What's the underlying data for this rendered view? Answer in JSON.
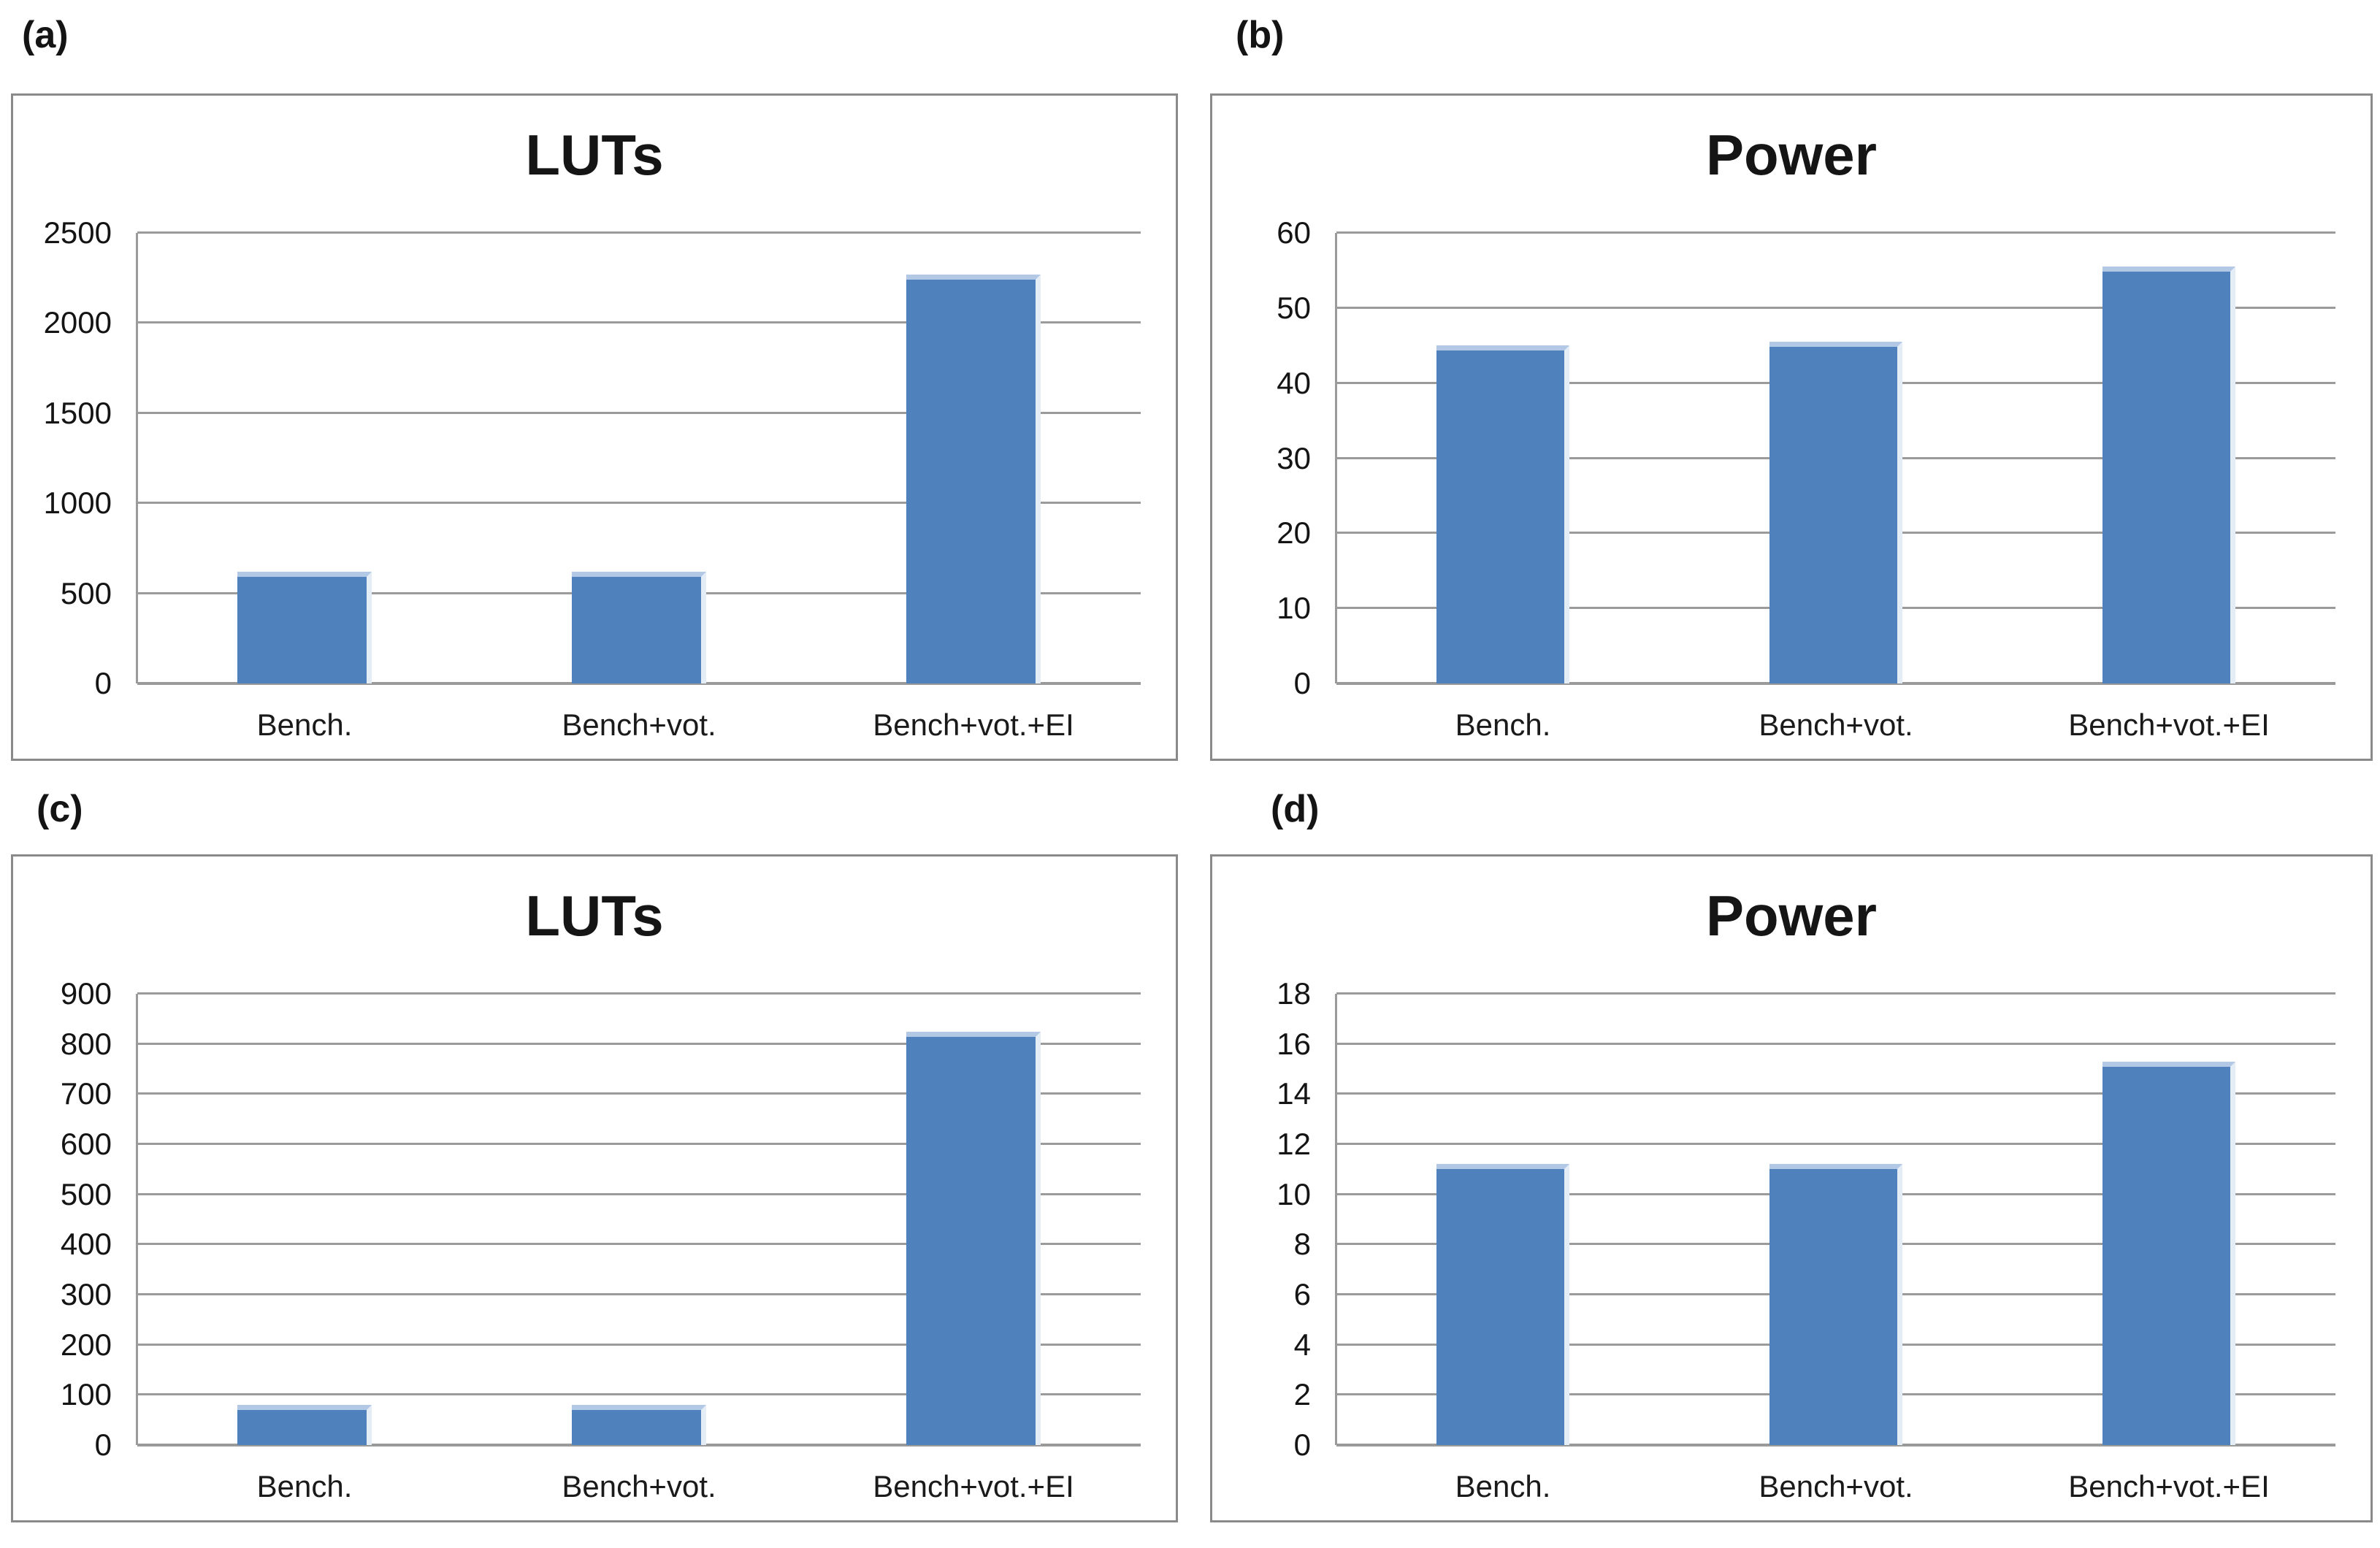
{
  "panels": [
    {
      "label": "(a)"
    },
    {
      "label": "(b)"
    },
    {
      "label": "(c)"
    },
    {
      "label": "(d)"
    }
  ],
  "chart_data": [
    {
      "type": "bar",
      "panel": "(a)",
      "title": "LUTs",
      "categories": [
        "Bench.",
        "Bench+vot.",
        "Bench+vot.+EI"
      ],
      "values": [
        620,
        620,
        2270
      ],
      "xlabel": "",
      "ylabel": "",
      "ylim": [
        0,
        2500
      ],
      "ytick_step": 500,
      "grid": true,
      "legend_position": "none"
    },
    {
      "type": "bar",
      "panel": "(b)",
      "title": "Power",
      "categories": [
        "Bench.",
        "Bench+vot.",
        "Bench+vot.+EI"
      ],
      "values": [
        45,
        45.5,
        55.5
      ],
      "xlabel": "",
      "ylabel": "",
      "ylim": [
        0,
        60
      ],
      "ytick_step": 10,
      "grid": true,
      "legend_position": "none"
    },
    {
      "type": "bar",
      "panel": "(c)",
      "title": "LUTs",
      "categories": [
        "Bench.",
        "Bench+vot.",
        "Bench+vot.+EI"
      ],
      "values": [
        80,
        80,
        825
      ],
      "xlabel": "",
      "ylabel": "",
      "ylim": [
        0,
        900
      ],
      "ytick_step": 100,
      "grid": true,
      "legend_position": "none"
    },
    {
      "type": "bar",
      "panel": "(d)",
      "title": "Power",
      "categories": [
        "Bench.",
        "Bench+vot.",
        "Bench+vot.+EI"
      ],
      "values": [
        11.2,
        11.2,
        15.3
      ],
      "xlabel": "",
      "ylabel": "",
      "ylim": [
        0,
        18
      ],
      "ytick_step": 2,
      "grid": true,
      "legend_position": "none"
    }
  ],
  "colors": {
    "bar": "#4f81bd",
    "bar_top_highlight": "#b3c8e5",
    "bar_right_highlight": "#e4ecf6",
    "gridline": "#9b9b9b",
    "zero_axis": "#9a9a9a",
    "y_axis_line": "#9b9b9b",
    "panel_border": "#8a8a8a",
    "text": "#141414",
    "background": "#ffffff"
  }
}
